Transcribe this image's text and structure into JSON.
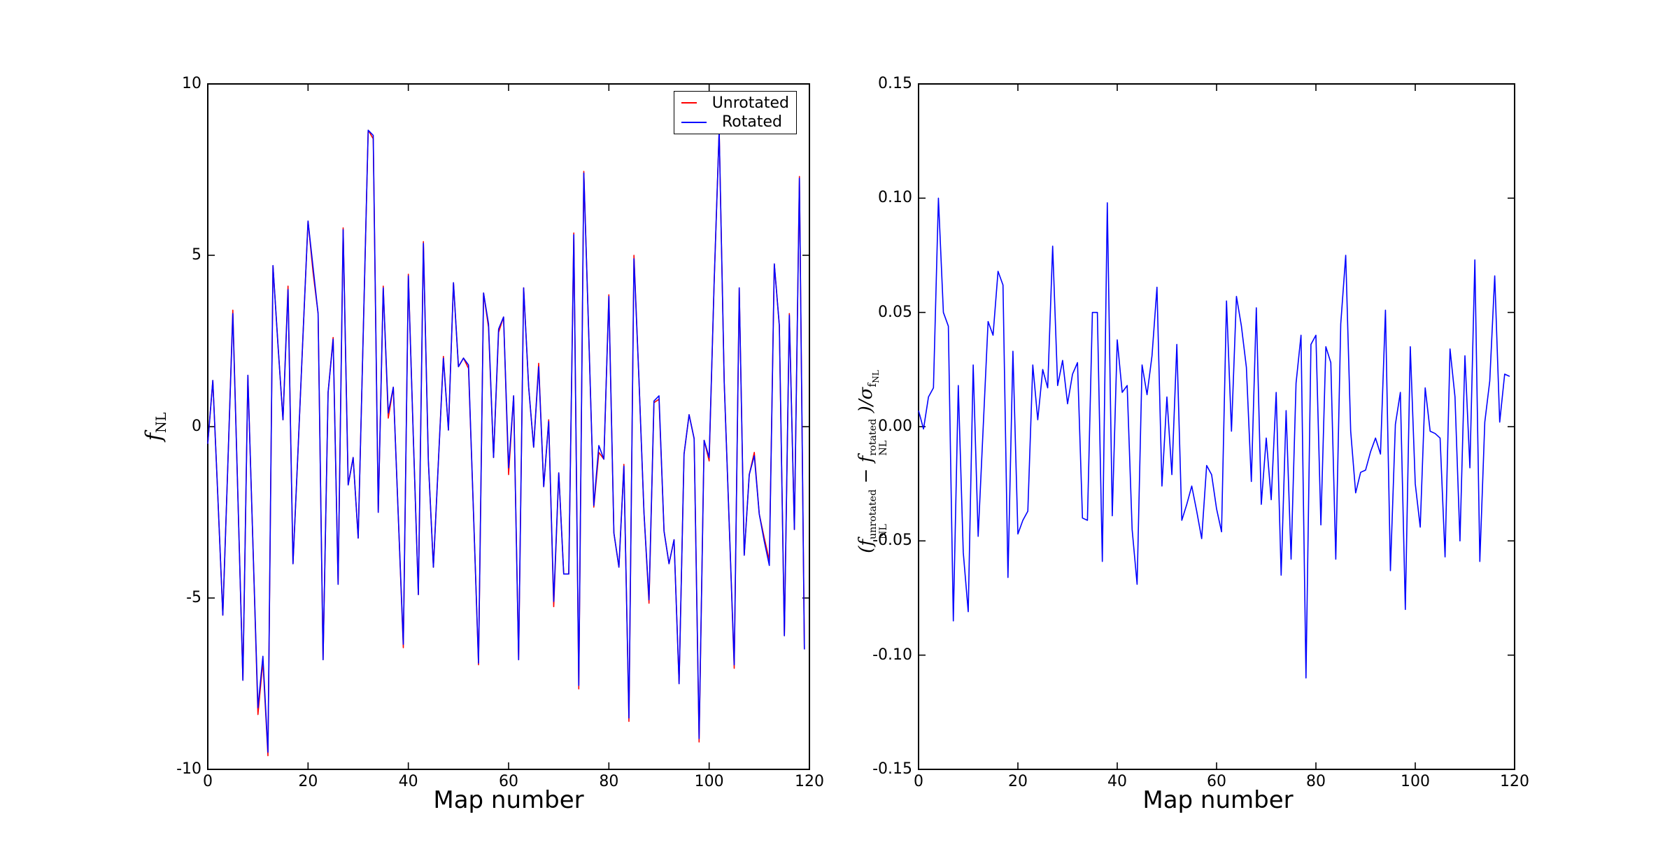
{
  "figure": {
    "background": "#ffffff"
  },
  "colors": {
    "unrotated": "#ff0000",
    "rotated": "#0000ff",
    "axis": "#000000"
  },
  "legend": {
    "items": [
      {
        "label": "Unrotated",
        "color": "#ff0000"
      },
      {
        "label": "Rotated",
        "color": "#0000ff"
      }
    ]
  },
  "left_plot": {
    "xlabel": "Map number",
    "ylabel": {
      "base": "f",
      "sub": "NL"
    },
    "xtick_labels": [
      "0",
      "20",
      "40",
      "60",
      "80",
      "100",
      "120"
    ],
    "ytick_labels": [
      "10",
      "5",
      "0",
      "-5",
      "-10"
    ]
  },
  "right_plot": {
    "xlabel": "Map number",
    "ylabel": {
      "p1": "(f",
      "sup1": "unrotated",
      "sub1": "NL",
      "p2": "− f",
      "sup2": "rotated",
      "sub2": "NL",
      "p3": ")/",
      "sigma": "σ",
      "sub3": "f",
      "sub4": "NL"
    },
    "xtick_labels": [
      "0",
      "20",
      "40",
      "60",
      "80",
      "100",
      "120"
    ],
    "ytick_labels": [
      "0.15",
      "0.10",
      "0.05",
      "0.00",
      "-0.05",
      "-0.10",
      "-0.15"
    ]
  },
  "chart_data": [
    {
      "type": "line",
      "title": "",
      "xlabel": "Map number",
      "ylabel": "f_NL",
      "xlim": [
        0,
        120
      ],
      "ylim": [
        -10,
        10
      ],
      "xticks": [
        0,
        20,
        40,
        60,
        80,
        100,
        120
      ],
      "yticks": [
        10,
        5,
        0,
        -5,
        -10
      ],
      "grid": false,
      "legend_position": "upper right",
      "x_start": 0,
      "x_step": 1,
      "series": [
        {
          "name": "Unrotated",
          "color": "#ff0000",
          "values": [
            -0.5,
            1.35,
            -2.0,
            -5.5,
            -1.1,
            3.4,
            -2.0,
            -7.4,
            1.5,
            -3.4,
            -8.4,
            -6.85,
            -9.6,
            4.7,
            2.4,
            0.2,
            4.1,
            -4.0,
            -0.7,
            2.7,
            6.0,
            4.5,
            3.3,
            -6.8,
            1.0,
            2.6,
            -4.6,
            5.8,
            -1.7,
            -0.9,
            -3.25,
            2.7,
            8.65,
            8.4,
            -2.5,
            4.1,
            0.25,
            1.15,
            -2.6,
            -6.45,
            4.45,
            -0.3,
            -4.9,
            5.4,
            -1.0,
            -4.1,
            -1.0,
            2.05,
            -0.1,
            4.2,
            1.75,
            2.0,
            1.7,
            -2.5,
            -6.95,
            3.9,
            2.9,
            -0.9,
            2.75,
            3.2,
            -1.4,
            0.9,
            -6.8,
            4.05,
            1.15,
            -0.6,
            1.85,
            -1.75,
            0.2,
            -5.25,
            -1.35,
            -4.3,
            -4.3,
            5.65,
            -7.65,
            7.45,
            2.6,
            -2.35,
            -0.75,
            -0.95,
            3.85,
            -3.1,
            -4.1,
            -1.1,
            -8.6,
            5.0,
            1.4,
            -2.5,
            -5.15,
            0.7,
            0.8,
            -3.05,
            -4.0,
            -3.3,
            -7.5,
            -0.8,
            0.35,
            -0.35,
            -9.2,
            -0.4,
            -1.0,
            4.2,
            8.65,
            1.3,
            -2.8,
            -7.05,
            4.05,
            -3.75,
            -1.4,
            -0.75,
            -2.55,
            -3.25,
            -3.9,
            4.75,
            2.95,
            -6.1,
            3.3,
            -3.0,
            7.3,
            -6.5
          ]
        },
        {
          "name": "Rotated",
          "color": "#0000ff",
          "values": [
            -0.5,
            1.35,
            -2.0,
            -5.5,
            -1.1,
            3.3,
            -2.0,
            -7.4,
            1.5,
            -3.4,
            -8.2,
            -6.7,
            -9.5,
            4.7,
            2.4,
            0.2,
            4.0,
            -4.0,
            -0.7,
            2.7,
            6.0,
            4.65,
            3.3,
            -6.8,
            1.0,
            2.55,
            -4.6,
            5.75,
            -1.7,
            -0.9,
            -3.25,
            2.7,
            8.65,
            8.5,
            -2.5,
            4.05,
            0.4,
            1.15,
            -2.6,
            -6.35,
            4.4,
            -0.3,
            -4.9,
            5.35,
            -1.0,
            -4.1,
            -1.0,
            2.0,
            -0.1,
            4.2,
            1.75,
            2.0,
            1.8,
            -2.5,
            -6.9,
            3.9,
            3.0,
            -0.9,
            2.85,
            3.2,
            -1.2,
            0.9,
            -6.8,
            4.05,
            1.15,
            -0.6,
            1.75,
            -1.75,
            0.15,
            -5.1,
            -1.35,
            -4.3,
            -4.3,
            5.6,
            -7.55,
            7.4,
            2.6,
            -2.3,
            -0.55,
            -0.95,
            3.8,
            -3.1,
            -4.1,
            -1.15,
            -8.5,
            4.9,
            1.4,
            -2.5,
            -5.05,
            0.75,
            0.9,
            -3.05,
            -4.0,
            -3.3,
            -7.5,
            -0.8,
            0.35,
            -0.35,
            -9.1,
            -0.4,
            -0.9,
            4.2,
            8.65,
            1.3,
            -2.8,
            -6.95,
            4.05,
            -3.75,
            -1.4,
            -0.85,
            -2.55,
            -3.35,
            -4.05,
            4.75,
            2.95,
            -6.1,
            3.25,
            -3.0,
            7.25,
            -6.5
          ]
        }
      ]
    },
    {
      "type": "line",
      "title": "",
      "xlabel": "Map number",
      "ylabel": "(f_NL^unrotated - f_NL^rotated)/sigma_f_NL",
      "xlim": [
        0,
        120
      ],
      "ylim": [
        -0.15,
        0.15
      ],
      "xticks": [
        0,
        20,
        40,
        60,
        80,
        100,
        120
      ],
      "yticks": [
        0.15,
        0.1,
        0.05,
        0.0,
        -0.05,
        -0.1,
        -0.15
      ],
      "grid": false,
      "x_start": 0,
      "x_step": 1,
      "series": [
        {
          "name": "difference",
          "color": "#0000ff",
          "values": [
            0.007,
            -0.001,
            0.013,
            0.017,
            0.1,
            0.05,
            0.044,
            -0.085,
            0.018,
            -0.055,
            -0.081,
            0.027,
            -0.048,
            -0.001,
            0.046,
            0.04,
            0.068,
            0.062,
            -0.066,
            0.033,
            -0.047,
            -0.041,
            -0.037,
            0.027,
            0.003,
            0.025,
            0.017,
            0.079,
            0.018,
            0.029,
            0.01,
            0.023,
            0.028,
            -0.04,
            -0.041,
            0.05,
            0.05,
            -0.059,
            0.098,
            -0.039,
            0.038,
            0.015,
            0.018,
            -0.045,
            -0.069,
            0.027,
            0.014,
            0.031,
            0.061,
            -0.026,
            0.013,
            -0.021,
            0.036,
            -0.041,
            -0.034,
            -0.026,
            -0.037,
            -0.049,
            -0.017,
            -0.021,
            -0.036,
            -0.046,
            0.055,
            -0.002,
            0.057,
            0.044,
            0.026,
            -0.024,
            0.052,
            -0.034,
            -0.005,
            -0.032,
            0.015,
            -0.065,
            0.007,
            -0.058,
            0.019,
            0.04,
            -0.11,
            0.036,
            0.04,
            -0.043,
            0.035,
            0.028,
            -0.058,
            0.045,
            0.075,
            -0.002,
            -0.029,
            -0.02,
            -0.019,
            -0.011,
            -0.005,
            -0.012,
            0.051,
            -0.063,
            0.001,
            0.015,
            -0.08,
            0.035,
            -0.025,
            -0.044,
            0.017,
            -0.002,
            -0.003,
            -0.005,
            -0.057,
            0.034,
            0.013,
            -0.05,
            0.031,
            -0.018,
            0.073,
            -0.059,
            0.002,
            0.02,
            0.066,
            0.002,
            0.023,
            0.022
          ]
        }
      ]
    }
  ]
}
